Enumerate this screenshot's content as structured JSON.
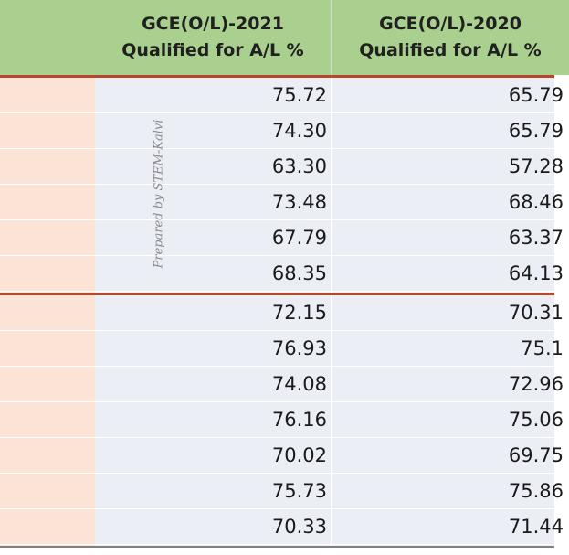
{
  "headers": {
    "col_2021": {
      "line1": "GCE(O/L)-2021",
      "line2": "Qualified for A/L  %"
    },
    "col_2020": {
      "line1": "GCE(O/L)-2020",
      "line2": "Qualified for A/L  %"
    }
  },
  "watermark": "Prepared by STEM-Kalvi",
  "rows": [
    {
      "v2021": "75.72",
      "v2020": "65.79"
    },
    {
      "v2021": "74.30",
      "v2020": "65.79"
    },
    {
      "v2021": "63.30",
      "v2020": "57.28"
    },
    {
      "v2021": "73.48",
      "v2020": "68.46"
    },
    {
      "v2021": "67.79",
      "v2020": "63.37"
    },
    {
      "v2021": "68.35",
      "v2020": "64.13"
    },
    {
      "v2021": "72.15",
      "v2020": "70.31"
    },
    {
      "v2021": "76.93",
      "v2020": "75.1"
    },
    {
      "v2021": "74.08",
      "v2020": "72.96"
    },
    {
      "v2021": "76.16",
      "v2020": "75.06"
    },
    {
      "v2021": "70.02",
      "v2020": "69.75"
    },
    {
      "v2021": "75.73",
      "v2020": "75.86"
    },
    {
      "v2021": "70.33",
      "v2020": "71.44"
    }
  ],
  "colors": {
    "header_bg": "#a9d08e",
    "left_column_bg": "#fbe4d5",
    "data_bg": "#ebeef5",
    "group_separator": "#b5472a"
  }
}
